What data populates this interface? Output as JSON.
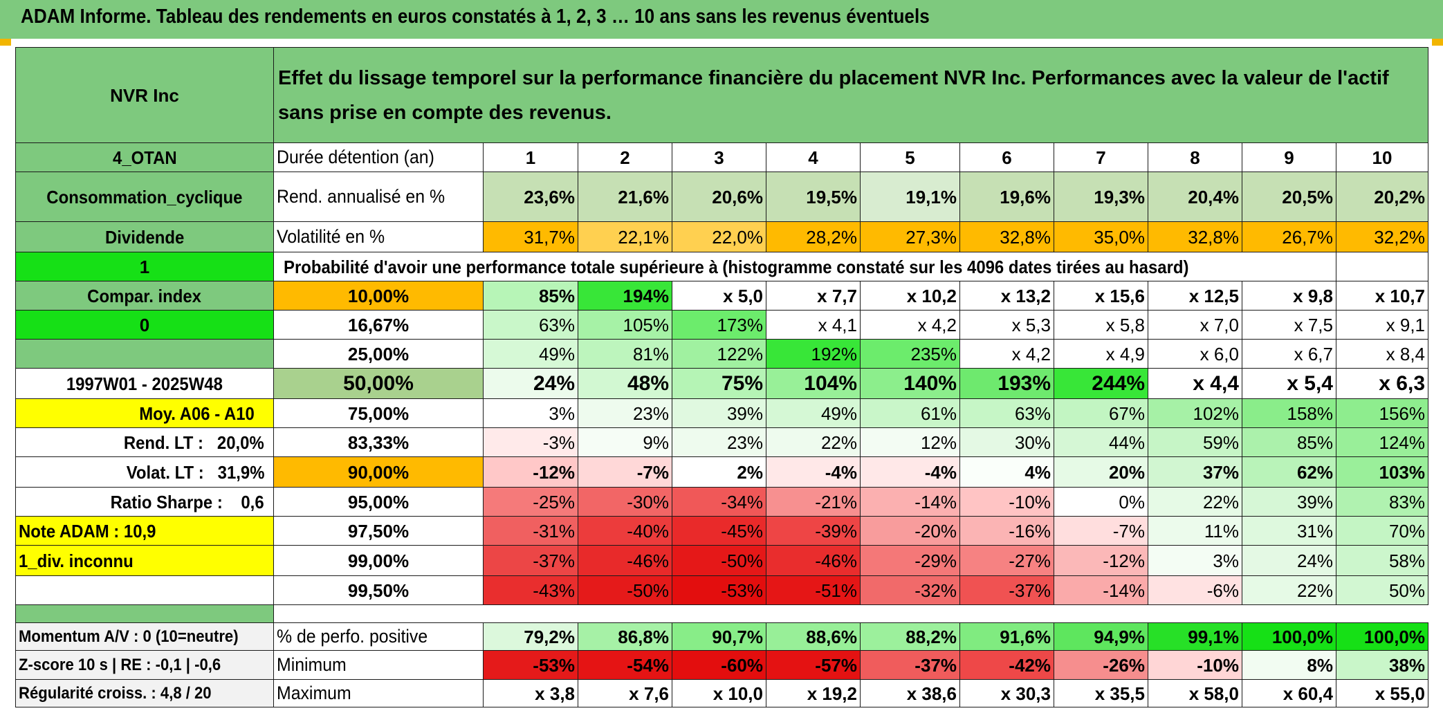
{
  "title": "ADAM Informe. Tableau des rendements en euros constatés à 1, 2, 3 … 10 ans sans les revenus éventuels",
  "header": {
    "asset": "NVR Inc",
    "description": "Effet du lissage temporel sur la performance financière du placement NVR Inc. Performances avec la valeur de l'actif sans prise en compte des revenus."
  },
  "left_panel": {
    "region": "4_OTAN",
    "sector": "Consommation_cyclique",
    "dividend_label": "Dividende",
    "dividend_value": "1",
    "compar_label": "Compar. index",
    "compar_value": "0",
    "period": "1997W01 - 2025W48",
    "moy": "Moy. A06 - A10",
    "rend_lt": "Rend. LT :   20,0%",
    "volat_lt": "Volat. LT :   31,9%",
    "sharpe": "Ratio Sharpe :    0,6",
    "note": "Note ADAM : 10,9",
    "div_status": "1_div. inconnu",
    "momentum": "Momentum A/V : 0 (10=neutre)",
    "zscore": "Z-score 10 s | RE : -0,1 | -0,6",
    "regularite": "Régularité croiss. : 4,8 / 20"
  },
  "labels": {
    "duree": "Durée détention (an)",
    "rend": "Rend. annualisé en %",
    "vol": "Volatilité en %",
    "prob": "Probabilité d'avoir une performance totale supérieure à (histogramme constaté sur les 4096 dates tirées au hasard)",
    "perfo_pos": "% de perfo. positive",
    "minimum": "Minimum",
    "maximum": "Maximum"
  },
  "years": [
    "1",
    "2",
    "3",
    "4",
    "5",
    "6",
    "7",
    "8",
    "9",
    "10"
  ],
  "rend_annualise": [
    "23,6%",
    "21,6%",
    "20,6%",
    "19,5%",
    "19,1%",
    "19,6%",
    "19,3%",
    "20,4%",
    "20,5%",
    "20,2%"
  ],
  "volatilite": [
    "31,7%",
    "22,1%",
    "22,0%",
    "28,2%",
    "27,3%",
    "32,8%",
    "35,0%",
    "32,8%",
    "26,7%",
    "32,2%"
  ],
  "prob_rows": [
    {
      "p": "10,00%",
      "v": [
        "85%",
        "194%",
        "x 5,0",
        "x 7,7",
        "x 10,2",
        "x 13,2",
        "x 15,6",
        "x 12,5",
        "x 9,8",
        "x 10,7"
      ]
    },
    {
      "p": "16,67%",
      "v": [
        "63%",
        "105%",
        "173%",
        "x 4,1",
        "x 4,2",
        "x 5,3",
        "x 5,8",
        "x 7,0",
        "x 7,5",
        "x 9,1"
      ]
    },
    {
      "p": "25,00%",
      "v": [
        "49%",
        "81%",
        "122%",
        "192%",
        "235%",
        "x 4,2",
        "x 4,9",
        "x 6,0",
        "x 6,7",
        "x 8,4"
      ]
    },
    {
      "p": "50,00%",
      "v": [
        "24%",
        "48%",
        "75%",
        "104%",
        "140%",
        "193%",
        "244%",
        "x 4,4",
        "x 5,4",
        "x 6,3"
      ]
    },
    {
      "p": "75,00%",
      "v": [
        "3%",
        "23%",
        "39%",
        "49%",
        "61%",
        "63%",
        "67%",
        "102%",
        "158%",
        "156%"
      ]
    },
    {
      "p": "83,33%",
      "v": [
        "-3%",
        "9%",
        "23%",
        "22%",
        "12%",
        "30%",
        "44%",
        "59%",
        "85%",
        "124%"
      ]
    },
    {
      "p": "90,00%",
      "v": [
        "-12%",
        "-7%",
        "2%",
        "-4%",
        "-4%",
        "4%",
        "20%",
        "37%",
        "62%",
        "103%"
      ]
    },
    {
      "p": "95,00%",
      "v": [
        "-25%",
        "-30%",
        "-34%",
        "-21%",
        "-14%",
        "-10%",
        "0%",
        "22%",
        "39%",
        "83%"
      ]
    },
    {
      "p": "97,50%",
      "v": [
        "-31%",
        "-40%",
        "-45%",
        "-39%",
        "-20%",
        "-16%",
        "-7%",
        "11%",
        "31%",
        "70%"
      ]
    },
    {
      "p": "99,00%",
      "v": [
        "-37%",
        "-46%",
        "-50%",
        "-46%",
        "-29%",
        "-27%",
        "-12%",
        "3%",
        "24%",
        "58%"
      ]
    },
    {
      "p": "99,50%",
      "v": [
        "-43%",
        "-50%",
        "-53%",
        "-51%",
        "-32%",
        "-37%",
        "-14%",
        "-6%",
        "22%",
        "50%"
      ]
    }
  ],
  "perfo_positive": [
    "79,2%",
    "86,8%",
    "90,7%",
    "88,6%",
    "88,2%",
    "91,6%",
    "94,9%",
    "99,1%",
    "100,0%",
    "100,0%"
  ],
  "minimum": [
    "-53%",
    "-54%",
    "-60%",
    "-57%",
    "-37%",
    "-42%",
    "-26%",
    "-10%",
    "8%",
    "38%"
  ],
  "maximum": [
    "x 3,8",
    "x 7,6",
    "x 10,0",
    "x 19,2",
    "x 38,6",
    "x 30,3",
    "x 35,5",
    "x 58,0",
    "x 60,4",
    "x 55,0"
  ],
  "colors": {
    "title_bg": "#7ec97e",
    "header_green": "#7ec97e",
    "bright_green": "#16e016",
    "orange": "#ffba00",
    "yellow": "#ffff00",
    "red_text": "#e00000",
    "rend_bg": [
      "#c6e0b4",
      "#c6e0b4",
      "#c6e0b4",
      "#c6e0b4",
      "#d8ecd0",
      "#c6e0b4",
      "#c6e0b4",
      "#c6e0b4",
      "#c6e0b4",
      "#c6e0b4"
    ],
    "vol_bg": [
      "#ffba00",
      "#ffd050",
      "#ffd050",
      "#ffba00",
      "#ffba00",
      "#ffba00",
      "#ffba00",
      "#ffba00",
      "#ffba00",
      "#ffba00"
    ],
    "prob_bg": [
      [
        "#b7f5b7",
        "#38e638",
        "#ffffff",
        "#ffffff",
        "#ffffff",
        "#ffffff",
        "#ffffff",
        "#ffffff",
        "#ffffff",
        "#ffffff"
      ],
      [
        "#c9f7c9",
        "#a6f2a6",
        "#6cec6c",
        "#ffffff",
        "#ffffff",
        "#ffffff",
        "#ffffff",
        "#ffffff",
        "#ffffff",
        "#ffffff"
      ],
      [
        "#d6f9d6",
        "#bdf5bd",
        "#a0f1a0",
        "#38e638",
        "#6cec6c",
        "#ffffff",
        "#ffffff",
        "#ffffff",
        "#ffffff",
        "#ffffff"
      ],
      [
        "#ecfbec",
        "#d2f8d2",
        "#b5f4b5",
        "#98f098",
        "#8cee8c",
        "#6ee96e",
        "#38e638",
        "#ffffff",
        "#ffffff",
        "#ffffff"
      ],
      [
        "#ffffff",
        "#eefbee",
        "#e0f9e0",
        "#d5f8d5",
        "#c9f6c9",
        "#c6f6c6",
        "#c2f5c2",
        "#a6f1a6",
        "#8aed8a",
        "#8eed8e"
      ],
      [
        "#ffeaea",
        "#f6fdf6",
        "#eefbee",
        "#eefbee",
        "#f3fcf3",
        "#e4f9e4",
        "#d5f7d5",
        "#c6f5c6",
        "#abf1ab",
        "#99ef99"
      ],
      [
        "#ffc8c8",
        "#ffd8d8",
        "#ffffff",
        "#ffe8e8",
        "#ffe8e8",
        "#fafffa",
        "#e6fae6",
        "#d1f6d1",
        "#b9f3b9",
        "#9aef9a"
      ],
      [
        "#f57a7a",
        "#f26666",
        "#f05858",
        "#f79090",
        "#fbb0b0",
        "#ffc4c4",
        "#ffffff",
        "#e6fae6",
        "#d6f7d6",
        "#b0f2b0"
      ],
      [
        "#f06060",
        "#ec3c3c",
        "#e92a2a",
        "#ee4545",
        "#f89c9c",
        "#fbb4b4",
        "#ffdede",
        "#ecfbec",
        "#def9de",
        "#c4f5c4"
      ],
      [
        "#ec4646",
        "#e82a2a",
        "#e51818",
        "#e92d2d",
        "#f47878",
        "#f68282",
        "#fbb8b8",
        "#f4fdf4",
        "#e4f9e4",
        "#ccf6cc"
      ],
      [
        "#e92e2e",
        "#e51a1a",
        "#e30e0e",
        "#e51616",
        "#f16a6a",
        "#f05252",
        "#faaaaa",
        "#ffe2e2",
        "#e6fae6",
        "#d2f7d2"
      ]
    ],
    "perfo_bg": [
      "#dcf8dc",
      "#a6f1a6",
      "#88ed88",
      "#98ef98",
      "#9cf09c",
      "#80eb80",
      "#5ee65e",
      "#27e027",
      "#16e016",
      "#16e016"
    ],
    "min_bg": [
      "#e51a1a",
      "#e51414",
      "#e30e0e",
      "#e41212",
      "#f05c5c",
      "#ee4848",
      "#f68e8e",
      "#ffd6d6",
      "#f2fcf2",
      "#c9f6c9"
    ]
  }
}
